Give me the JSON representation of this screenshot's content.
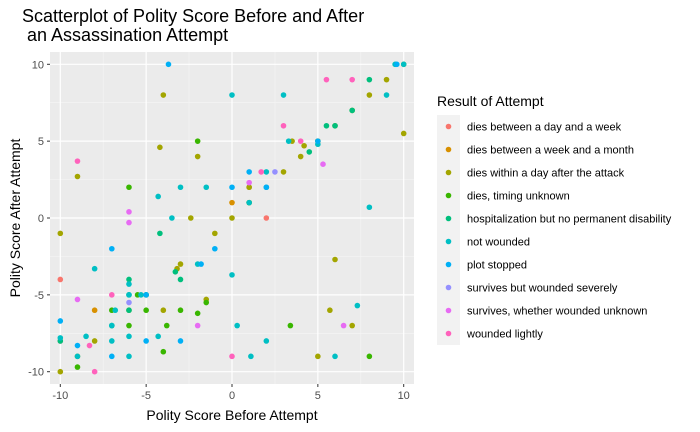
{
  "chart_data": {
    "type": "scatter",
    "title_lines": [
      "Scatterplot of Polity Score Before and After",
      " an Assassination Attempt"
    ],
    "xlabel": "Polity Score Before Attempt",
    "ylabel": "Polity Score After Attempt",
    "xlim": [
      -10.6,
      10.6
    ],
    "ylim": [
      -10.8,
      10.8
    ],
    "x_ticks": [
      -10,
      -5,
      0,
      5,
      10
    ],
    "y_ticks": [
      -10,
      -5,
      0,
      5,
      10
    ],
    "x_tick_labels": [
      "-10",
      "-5",
      "0",
      "5",
      "10"
    ],
    "y_tick_labels": [
      "-10",
      "-5",
      "0",
      "5",
      "10"
    ],
    "grid": true,
    "legend_position": "right",
    "legend_title": "Result of Attempt",
    "series": [
      {
        "name": "dies between a day and a week",
        "color": "#F8766D",
        "points": [
          [
            -10,
            -4
          ],
          [
            2,
            0
          ],
          [
            1,
            2
          ],
          [
            -10,
            -8
          ]
        ]
      },
      {
        "name": "dies between a week and a month",
        "color": "#D89000",
        "points": [
          [
            -8,
            -6
          ],
          [
            0,
            1
          ],
          [
            5,
            5
          ]
        ]
      },
      {
        "name": "dies within a day after the attack",
        "color": "#A3A500",
        "points": [
          [
            -10,
            -1
          ],
          [
            -9,
            2.7
          ],
          [
            -4,
            8
          ],
          [
            -4.2,
            4.6
          ],
          [
            -2.4,
            0
          ],
          [
            -2,
            4
          ],
          [
            -1,
            -1
          ],
          [
            0,
            0
          ],
          [
            1,
            1
          ],
          [
            1,
            2
          ],
          [
            3,
            3
          ],
          [
            3.5,
            5
          ],
          [
            4,
            4
          ],
          [
            4.2,
            4.7
          ],
          [
            5,
            5
          ],
          [
            6,
            6
          ],
          [
            7,
            7
          ],
          [
            8,
            8
          ],
          [
            9,
            9
          ],
          [
            10,
            10
          ],
          [
            10,
            5.5
          ],
          [
            -3,
            -3
          ],
          [
            -3.2,
            -3.3
          ],
          [
            -5,
            -5
          ],
          [
            -6,
            -6
          ],
          [
            -8,
            -8
          ],
          [
            -9,
            -9
          ],
          [
            -10,
            -10
          ],
          [
            6,
            -2.7
          ],
          [
            5.7,
            -6
          ],
          [
            7,
            -7
          ],
          [
            5,
            -9
          ],
          [
            -4,
            -6
          ],
          [
            -1.5,
            -5.3
          ]
        ]
      },
      {
        "name": "dies, timing unknown",
        "color": "#39B600",
        "points": [
          [
            -6,
            2
          ],
          [
            -2,
            5
          ],
          [
            -5,
            -6
          ],
          [
            -6,
            -7
          ],
          [
            -7,
            -6
          ],
          [
            -9,
            -9.7
          ],
          [
            -4,
            -8.7
          ],
          [
            -3,
            -6
          ],
          [
            -2,
            -6.2
          ],
          [
            -1.5,
            -5.5
          ],
          [
            1,
            1
          ],
          [
            3.4,
            -7
          ],
          [
            8,
            -9
          ],
          [
            -3.8,
            -7
          ],
          [
            -5.5,
            -5
          ]
        ]
      },
      {
        "name": "hospitalization but no permanent disability",
        "color": "#00BF7D",
        "points": [
          [
            -6,
            -5
          ],
          [
            -6,
            -6
          ],
          [
            -6,
            -4
          ],
          [
            -10,
            -8
          ],
          [
            -7,
            -7
          ],
          [
            -3.3,
            -3.5
          ],
          [
            -4.2,
            -1
          ],
          [
            -3,
            -4
          ],
          [
            -5,
            -5
          ],
          [
            8,
            9
          ],
          [
            7,
            7
          ],
          [
            4.5,
            4.3
          ],
          [
            5.5,
            6
          ],
          [
            6,
            6
          ]
        ]
      },
      {
        "name": "not wounded",
        "color": "#00BFC4",
        "points": [
          [
            -8,
            -3.3
          ],
          [
            -6,
            -4.3
          ],
          [
            -6,
            -5
          ],
          [
            -6,
            -7.7
          ],
          [
            -6,
            -9
          ],
          [
            -6.8,
            -6
          ],
          [
            -7,
            -7
          ],
          [
            -7,
            -8
          ],
          [
            -8.5,
            -7.7
          ],
          [
            -9,
            -9
          ],
          [
            -10,
            -7.8
          ],
          [
            -4.3,
            -7.7
          ],
          [
            -4.3,
            1.4
          ],
          [
            -3.5,
            0
          ],
          [
            -3,
            2
          ],
          [
            -2,
            -3
          ],
          [
            -1.5,
            2
          ],
          [
            0,
            8
          ],
          [
            0,
            -3.7
          ],
          [
            0.3,
            -7
          ],
          [
            1.1,
            -9
          ],
          [
            2,
            -8
          ],
          [
            2,
            2
          ],
          [
            2,
            3
          ],
          [
            1,
            1
          ],
          [
            3,
            8
          ],
          [
            3.3,
            5
          ],
          [
            5,
            4.8
          ],
          [
            6,
            -9
          ],
          [
            7.3,
            -5.7
          ],
          [
            8,
            0.7
          ],
          [
            9,
            8
          ],
          [
            9.5,
            10
          ],
          [
            10,
            10
          ],
          [
            -5.3,
            -5
          ]
        ]
      },
      {
        "name": "plot stopped",
        "color": "#00B0F6",
        "points": [
          [
            -10,
            -6.7
          ],
          [
            -9,
            -8.3
          ],
          [
            -7,
            -2
          ],
          [
            -7,
            -9
          ],
          [
            -5,
            -5
          ],
          [
            -3.7,
            10
          ],
          [
            -3,
            -8
          ],
          [
            -1.8,
            -3
          ],
          [
            -1,
            -2
          ],
          [
            0,
            2
          ],
          [
            1,
            3
          ],
          [
            2,
            2
          ],
          [
            5,
            5
          ],
          [
            9.6,
            10
          ],
          [
            -5,
            -8
          ]
        ]
      },
      {
        "name": "survives but wounded severely",
        "color": "#9590FF",
        "points": [
          [
            -6,
            -5.5
          ],
          [
            2.5,
            3
          ]
        ]
      },
      {
        "name": "survives, whether wounded unknown",
        "color": "#E76BF3",
        "points": [
          [
            -6,
            0.4
          ],
          [
            -6,
            -0.3
          ],
          [
            -9,
            -5.3
          ],
          [
            -2,
            -7
          ],
          [
            1,
            2.3
          ],
          [
            6.5,
            -7
          ],
          [
            5.3,
            3.5
          ]
        ]
      },
      {
        "name": "wounded lightly",
        "color": "#FF62BC",
        "points": [
          [
            -9,
            3.7
          ],
          [
            -8,
            -10
          ],
          [
            -8.3,
            -8.3
          ],
          [
            0,
            -9
          ],
          [
            1.7,
            3
          ],
          [
            3,
            6
          ],
          [
            4,
            5
          ],
          [
            5.5,
            9
          ],
          [
            7,
            9
          ],
          [
            -7,
            -5
          ]
        ]
      }
    ]
  }
}
